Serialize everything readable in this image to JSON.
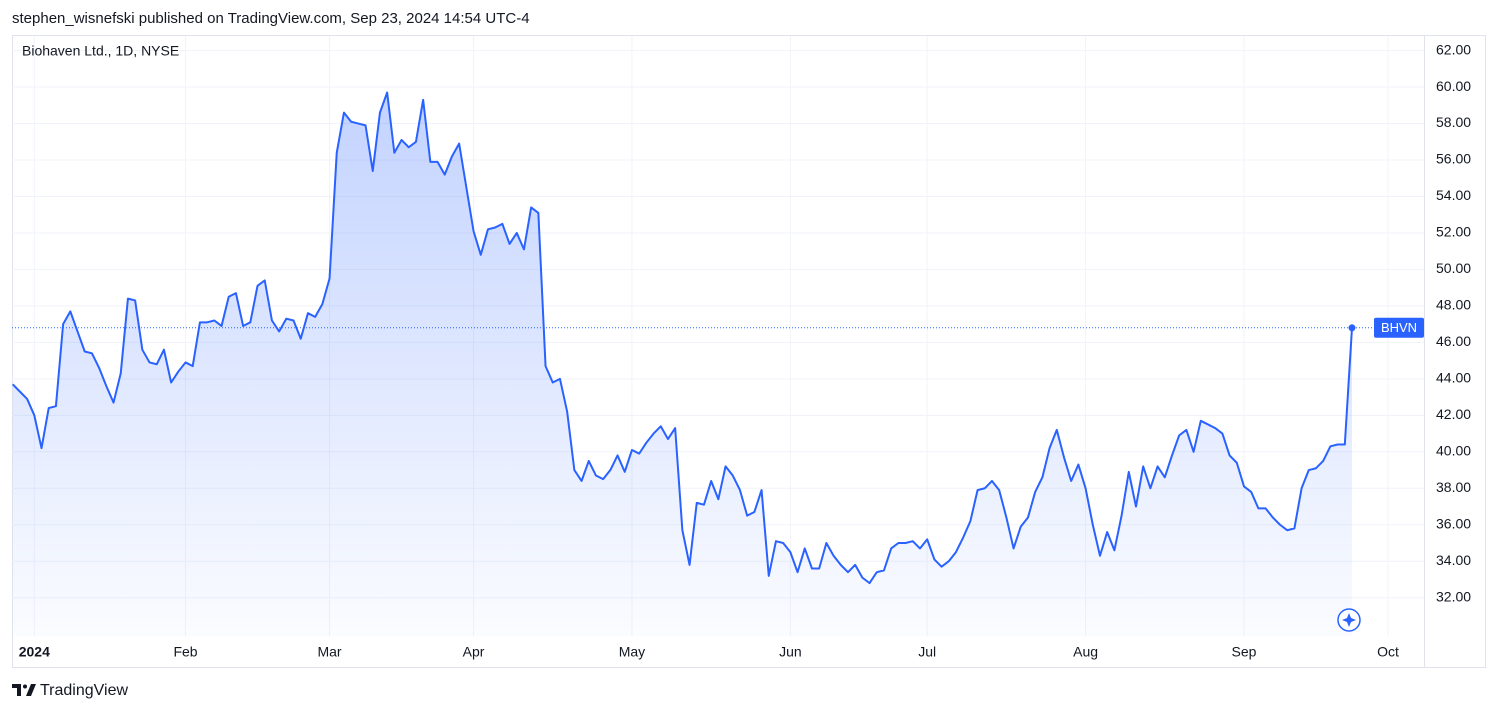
{
  "header": "stephen_wisnefski published on TradingView.com, Sep 23, 2024 14:54 UTC-4",
  "footer": "TradingView",
  "chart_data": {
    "type": "line",
    "title": "Biohaven Ltd., 1D, NYSE",
    "series": [
      {
        "name": "BHVN",
        "color": "#2962ff",
        "values": [
          43.7,
          43.3,
          42.9,
          42.0,
          40.2,
          42.4,
          42.5,
          47.0,
          47.7,
          46.6,
          45.5,
          45.4,
          44.6,
          43.6,
          42.7,
          44.3,
          48.4,
          48.3,
          45.6,
          44.9,
          44.8,
          45.6,
          43.8,
          44.4,
          44.9,
          44.7,
          47.1,
          47.1,
          47.2,
          46.9,
          48.5,
          48.7,
          46.9,
          47.1,
          49.1,
          49.4,
          47.2,
          46.6,
          47.3,
          47.2,
          46.2,
          47.6,
          47.4,
          48.1,
          49.5,
          56.4,
          58.6,
          58.1,
          58.0,
          57.9,
          55.4,
          58.6,
          59.7,
          56.4,
          57.1,
          56.7,
          57.0,
          59.3,
          55.9,
          55.9,
          55.2,
          56.2,
          56.9,
          54.5,
          52.1,
          50.8,
          52.2,
          52.3,
          52.5,
          51.4,
          52.0,
          51.1,
          53.4,
          53.1,
          44.7,
          43.8,
          44.0,
          42.2,
          39.0,
          38.4,
          39.5,
          38.7,
          38.5,
          39.0,
          39.8,
          38.9,
          40.1,
          39.9,
          40.5,
          41.0,
          41.4,
          40.7,
          41.3,
          35.7,
          33.8,
          37.2,
          37.1,
          38.4,
          37.4,
          39.2,
          38.7,
          37.9,
          36.5,
          36.7,
          37.9,
          33.2,
          35.1,
          35.0,
          34.5,
          33.4,
          34.7,
          33.6,
          33.6,
          35.0,
          34.3,
          33.8,
          33.4,
          33.8,
          33.1,
          32.8,
          33.4,
          33.5,
          34.7,
          35.0,
          35.0,
          35.1,
          34.7,
          35.2,
          34.1,
          33.7,
          34.0,
          34.5,
          35.3,
          36.2,
          37.9,
          38.0,
          38.4,
          37.9,
          36.4,
          34.7,
          35.9,
          36.4,
          37.8,
          38.6,
          40.2,
          41.2,
          39.7,
          38.4,
          39.3,
          38.0,
          36.0,
          34.3,
          35.6,
          34.6,
          36.5,
          38.9,
          37.0,
          39.2,
          38.0,
          39.2,
          38.6,
          39.8,
          40.9,
          41.2,
          40.0,
          41.7,
          41.5,
          41.3,
          41.0,
          39.8,
          39.4,
          38.1,
          37.8,
          36.9,
          36.9,
          36.4,
          36.0,
          35.7,
          35.8,
          38.0,
          39.0,
          39.1,
          39.5,
          40.3,
          40.4,
          40.4,
          46.8
        ]
      }
    ],
    "xlim": [
      -0.1,
      196
    ],
    "xticks": [
      {
        "value": 3,
        "label": "2024"
      },
      {
        "value": 24,
        "label": "Feb"
      },
      {
        "value": 44,
        "label": "Mar"
      },
      {
        "value": 64,
        "label": "Apr"
      },
      {
        "value": 86,
        "label": "May"
      },
      {
        "value": 108,
        "label": "Jun"
      },
      {
        "value": 127,
        "label": "Jul"
      },
      {
        "value": 149,
        "label": "Aug"
      },
      {
        "value": 171,
        "label": "Sep"
      },
      {
        "value": 191,
        "label": "Oct"
      }
    ],
    "ylim": [
      29.9,
      62.8
    ],
    "yticks": [
      {
        "value": 32,
        "label": "32.00"
      },
      {
        "value": 34,
        "label": "34.00"
      },
      {
        "value": 36,
        "label": "36.00"
      },
      {
        "value": 38,
        "label": "38.00"
      },
      {
        "value": 40,
        "label": "40.00"
      },
      {
        "value": 42,
        "label": "42.00"
      },
      {
        "value": 44,
        "label": "44.00"
      },
      {
        "value": 46,
        "label": "46.00"
      },
      {
        "value": 48,
        "label": "48.00"
      },
      {
        "value": 50,
        "label": "50.00"
      },
      {
        "value": 52,
        "label": "52.00"
      },
      {
        "value": 54,
        "label": "54.00"
      },
      {
        "value": 56,
        "label": "56.00"
      },
      {
        "value": 58,
        "label": "58.00"
      },
      {
        "value": 60,
        "label": "60.00"
      },
      {
        "value": 62,
        "label": "62.00"
      }
    ],
    "grid": true
  }
}
